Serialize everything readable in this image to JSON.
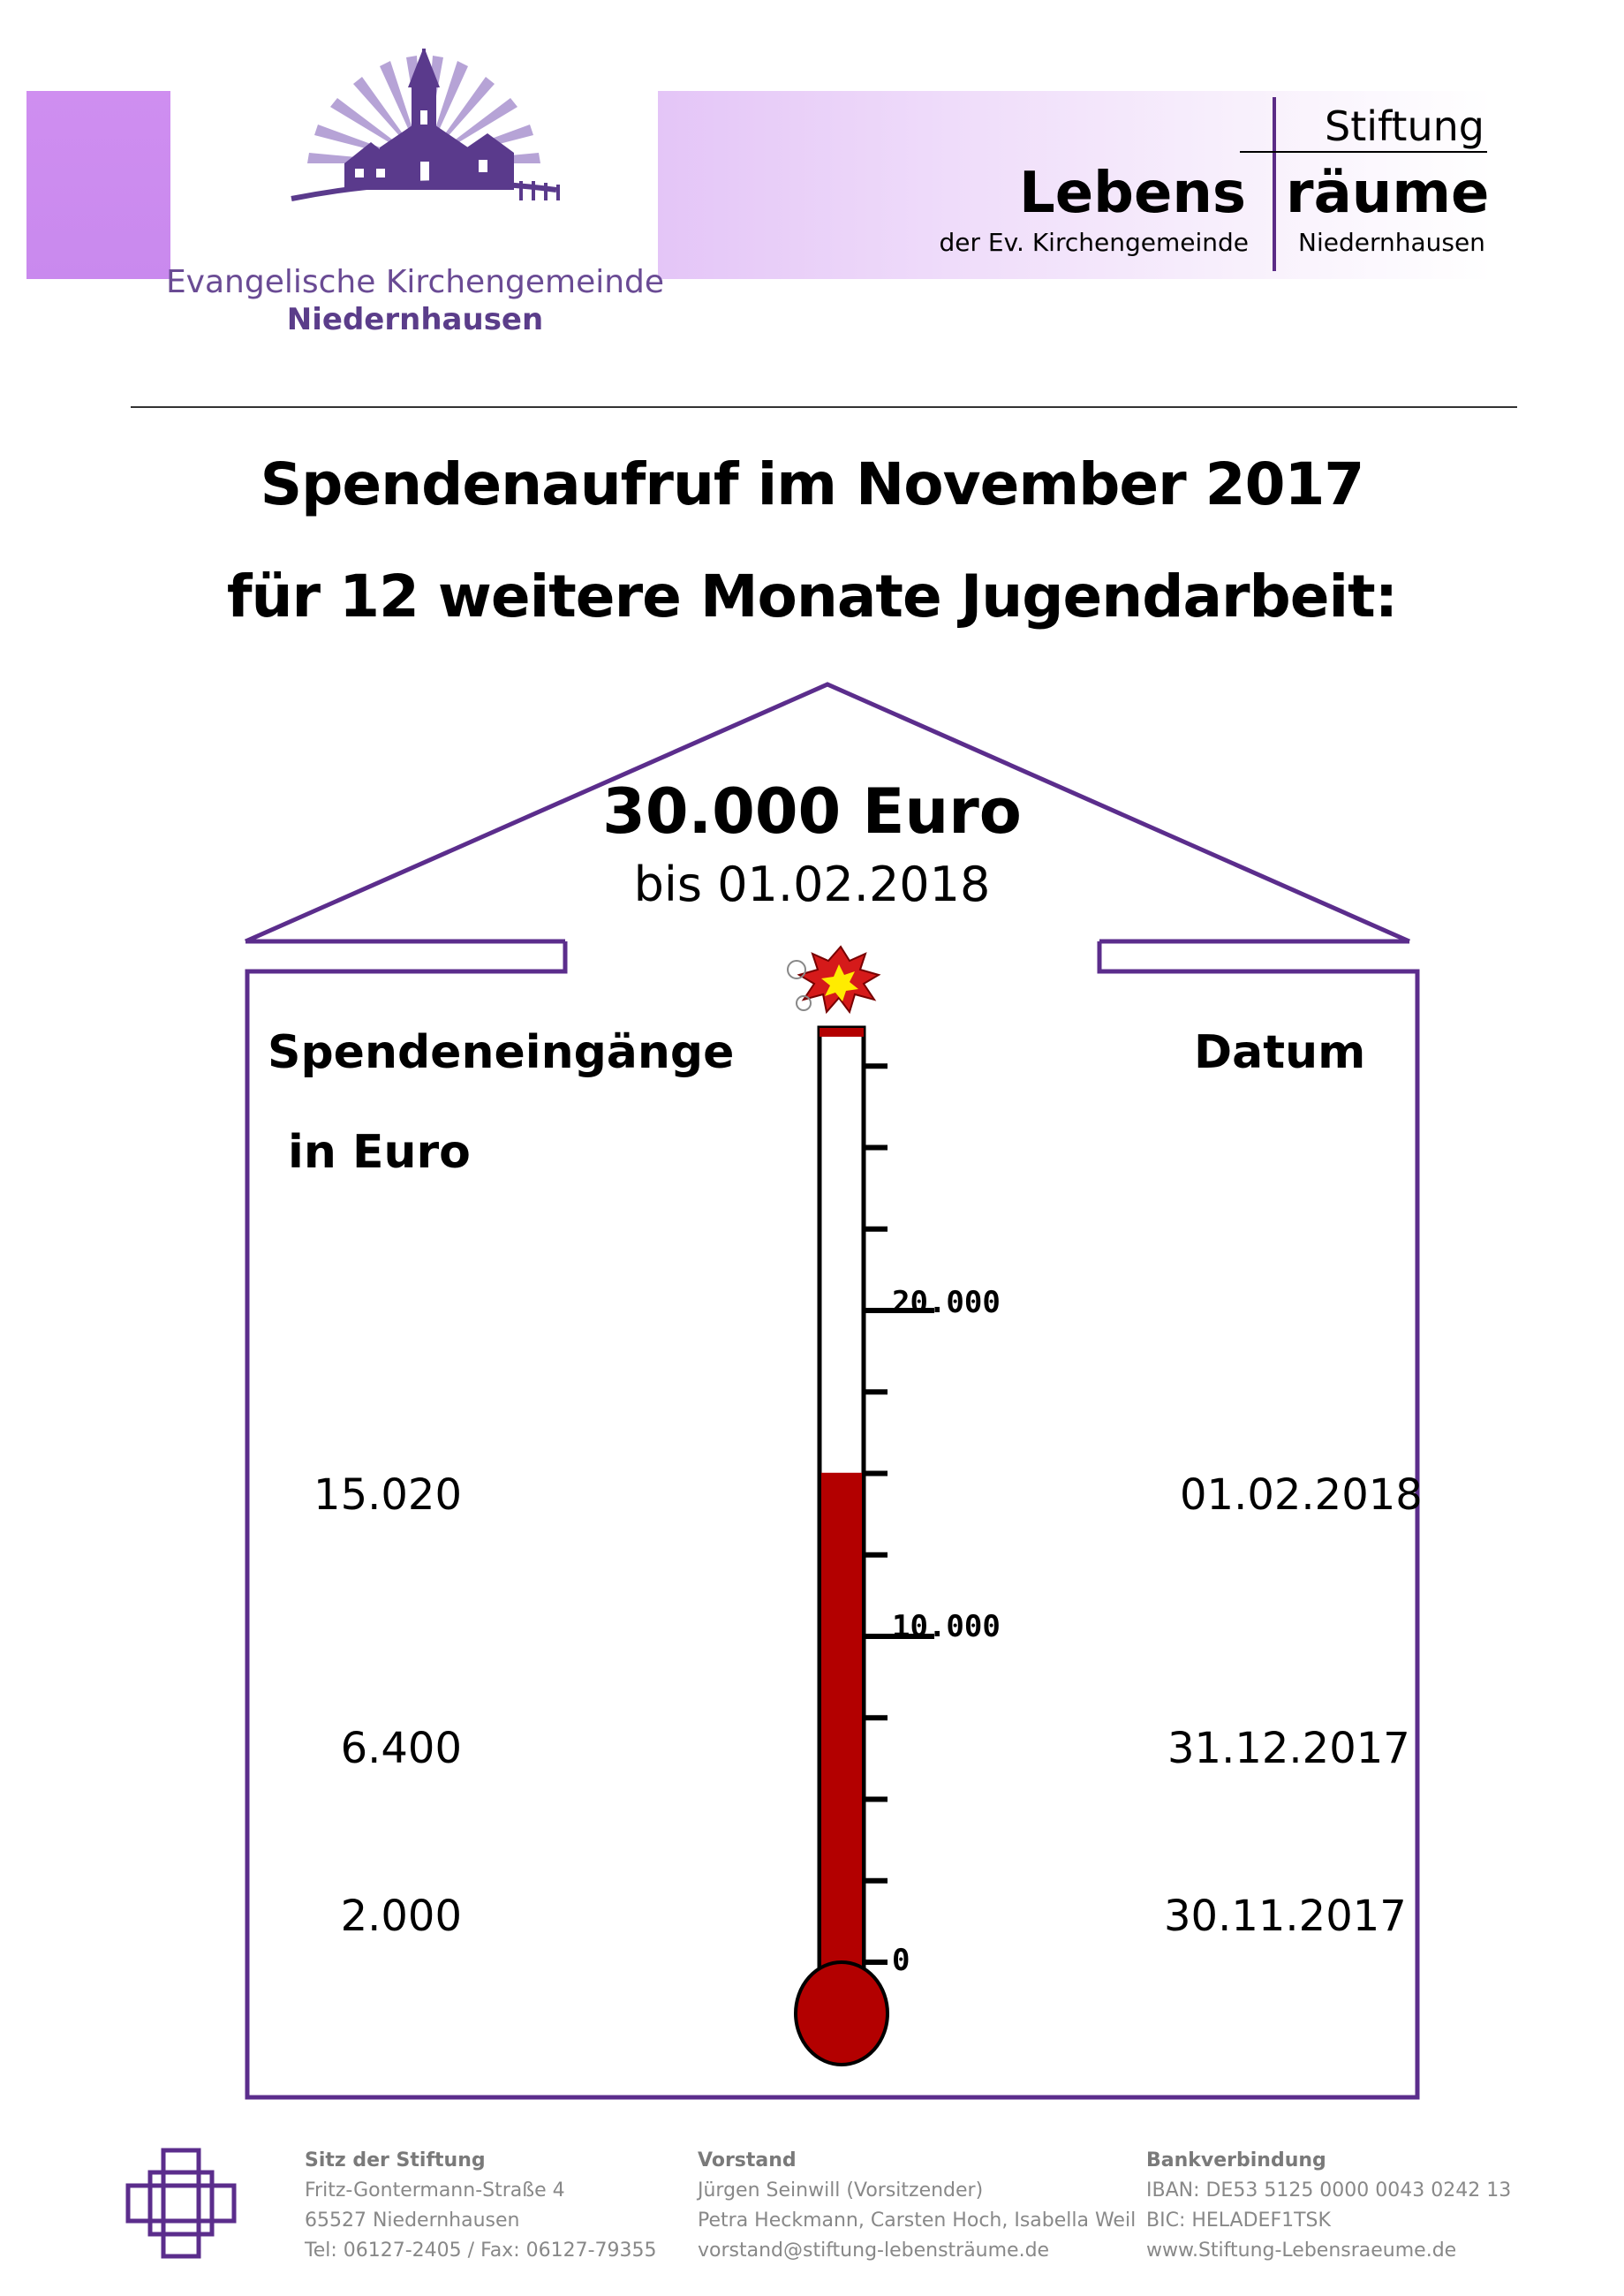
{
  "header": {
    "org_name": "Evangelische Kirchengemeinde",
    "org_place": "Niedernhausen",
    "stiftung_top": "Stiftung",
    "stiftung_lebens": "Lebens",
    "stiftung_raeume": "räume",
    "stiftung_sub_left": "der Ev. Kirchengemeinde",
    "stiftung_sub_right": "Niedernhausen"
  },
  "title": {
    "line1": "Spendenaufruf im November 2017",
    "line2": "für 12 weitere Monate Jugendarbeit:"
  },
  "goal": {
    "amount": "30.000 Euro",
    "deadline": "bis 01.02.2018"
  },
  "columns": {
    "left_heading": "Spendeneingänge",
    "left_subheading": "in Euro",
    "right_heading": "Datum"
  },
  "entries": [
    {
      "amount": "15.020",
      "date": "01.02.2018"
    },
    {
      "amount": "6.400",
      "date": "31.12.2017"
    },
    {
      "amount": "2.000",
      "date": "30.11.2017"
    }
  ],
  "thermometer": {
    "tick_labels": [
      "20.000",
      "10.000",
      "0"
    ],
    "scale_max": 27500,
    "current_value": 15020,
    "fill_color": "#b30000"
  },
  "footer": {
    "sitz": {
      "title": "Sitz der Stiftung",
      "lines": [
        "Fritz-Gontermann-Straße 4",
        "65527 Niedernhausen",
        "Tel: 06127-2405 / Fax: 06127-79355"
      ]
    },
    "vorstand": {
      "title": "Vorstand",
      "lines": [
        "Jürgen Seinwill (Vorsitzender)",
        "Petra Heckmann, Carsten Hoch, Isabella Weil",
        "vorstand@stiftung-lebensträume.de"
      ]
    },
    "bank": {
      "title": "Bankverbindung",
      "lines": [
        "IBAN: DE53 5125 0000 0043 0242 13",
        "BIC: HELADEF1TSK",
        "www.Stiftung-Lebensraeume.de"
      ]
    }
  }
}
